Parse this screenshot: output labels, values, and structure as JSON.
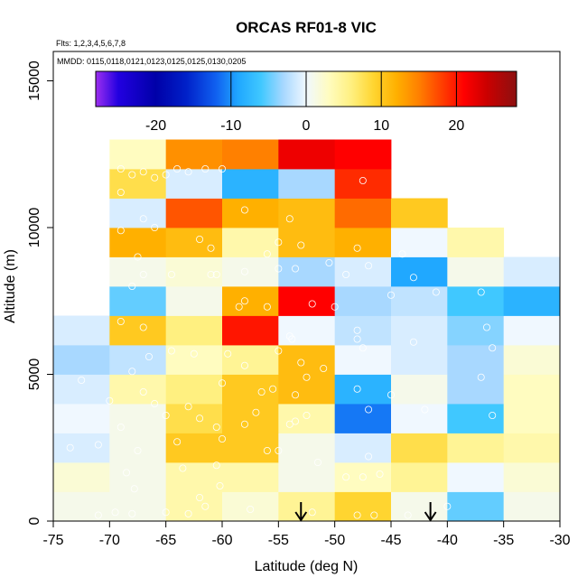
{
  "chart_data": {
    "type": "heatmap",
    "title": "ORCAS RF01-8 VIC",
    "subtitle_flights": "Flts: 1,2,3,4,5,6,7,8",
    "subtitle_dates": "MMDD: 0115,0118,0121,0123,0125,0125,0130,0205",
    "xlabel": "Latitude (deg N)",
    "ylabel": "Altitude (m)",
    "xlim": [
      -75,
      -30
    ],
    "ylim": [
      0,
      16000
    ],
    "x_ticks": [
      -75,
      -70,
      -65,
      -60,
      -55,
      -50,
      -45,
      -40,
      -35,
      -30
    ],
    "x_tick_labels": [
      "-75",
      "-70",
      "-65",
      "-60",
      "-55",
      "-50",
      "-45",
      "-40",
      "-35",
      "-30"
    ],
    "y_ticks": [
      0,
      5000,
      10000,
      15000
    ],
    "y_tick_labels": [
      "0",
      "5000",
      "10000",
      "15000"
    ],
    "colorbar": {
      "range": [
        -28,
        28
      ],
      "ticks": [
        -20,
        -10,
        0,
        10,
        20
      ],
      "tick_labels": [
        "-20",
        "-10",
        "0",
        "10",
        "20"
      ],
      "stops": [
        {
          "v": -28,
          "c": "#9d2ff0"
        },
        {
          "v": -25,
          "c": "#2200e0"
        },
        {
          "v": -20,
          "c": "#0000a8"
        },
        {
          "v": -16,
          "c": "#0020c8"
        },
        {
          "v": -12,
          "c": "#1060f0"
        },
        {
          "v": -9,
          "c": "#20a8ff"
        },
        {
          "v": -6,
          "c": "#40c8ff"
        },
        {
          "v": -3,
          "c": "#a8d8ff"
        },
        {
          "v": 0,
          "c": "#f0f8ff"
        },
        {
          "v": 3,
          "c": "#fffcc0"
        },
        {
          "v": 6,
          "c": "#fff080"
        },
        {
          "v": 9,
          "c": "#ffd530"
        },
        {
          "v": 12,
          "c": "#ffb000"
        },
        {
          "v": 15,
          "c": "#ff8000"
        },
        {
          "v": 18,
          "c": "#ff4000"
        },
        {
          "v": 21,
          "c": "#ff0000"
        },
        {
          "v": 24,
          "c": "#cc0000"
        },
        {
          "v": 28,
          "c": "#8b1010"
        }
      ]
    },
    "lat_bins": [
      -75,
      -70,
      -65,
      -60,
      -55,
      -50,
      -45,
      -40,
      -35
    ],
    "alt_bin_size": 1000,
    "grid": [
      [
        1,
        1,
        4,
        2,
        5,
        9,
        1,
        -5,
        1
      ],
      [
        2,
        1,
        4,
        4,
        1,
        3,
        5,
        0,
        2
      ],
      [
        -1,
        1,
        10,
        10,
        1,
        -1,
        8,
        5,
        4
      ],
      [
        0,
        1,
        8,
        10,
        4,
        -11,
        0,
        -6,
        3
      ],
      [
        -1,
        4,
        6,
        10,
        11,
        -8,
        1,
        -3,
        3
      ],
      [
        -3,
        -2,
        3,
        5,
        11,
        0,
        -1,
        -3,
        2
      ],
      [
        -1,
        10,
        6,
        20,
        0,
        -2,
        -1,
        -4,
        0
      ],
      [
        null,
        -5,
        1,
        12,
        21,
        -3,
        -2,
        -6,
        -8
      ],
      [
        null,
        1,
        2,
        1,
        -3,
        -1,
        -9,
        1,
        -1
      ],
      [
        null,
        12,
        11,
        4,
        11,
        12,
        0,
        4,
        null
      ],
      [
        null,
        -1,
        17,
        12,
        11,
        16,
        10,
        null,
        null
      ],
      [
        null,
        8,
        -1,
        -8,
        -3,
        19,
        null,
        null,
        null
      ],
      [
        null,
        3,
        14,
        15,
        22,
        21,
        null,
        null,
        null
      ]
    ],
    "obs_points": [
      [
        -71,
        200
      ],
      [
        -69.5,
        300
      ],
      [
        -68,
        250
      ],
      [
        -67.8,
        1100
      ],
      [
        -65,
        300
      ],
      [
        -63,
        250
      ],
      [
        -62,
        800
      ],
      [
        -61.5,
        500
      ],
      [
        -60.2,
        1200
      ],
      [
        -57.5,
        400
      ],
      [
        -52,
        300
      ],
      [
        -48,
        200
      ],
      [
        -46.5,
        200
      ],
      [
        -47.5,
        1500
      ],
      [
        -46,
        1600
      ],
      [
        -43.5,
        200
      ],
      [
        -40,
        500
      ],
      [
        -68.5,
        1650
      ],
      [
        -63.5,
        1800
      ],
      [
        -60.5,
        1900
      ],
      [
        -56,
        2400
      ],
      [
        -55,
        2400
      ],
      [
        -47,
        2200
      ],
      [
        -67.5,
        2400
      ],
      [
        -71,
        2600
      ],
      [
        -64,
        2700
      ],
      [
        -60,
        2800
      ],
      [
        -58,
        3300
      ],
      [
        -54,
        3300
      ],
      [
        -53.5,
        3400
      ],
      [
        -62,
        3500
      ],
      [
        -65,
        3600
      ],
      [
        -60.5,
        3200
      ],
      [
        -47,
        3800
      ],
      [
        -42,
        3800
      ],
      [
        -36,
        3600
      ],
      [
        -70,
        4100
      ],
      [
        -67,
        4400
      ],
      [
        -60,
        4700
      ],
      [
        -56.5,
        4400
      ],
      [
        -55.5,
        4500
      ],
      [
        -53.5,
        4300
      ],
      [
        -63,
        3900
      ],
      [
        -48,
        4500
      ],
      [
        -45,
        4300
      ],
      [
        -52.5,
        4900
      ],
      [
        -51,
        5200
      ],
      [
        -68,
        5100
      ],
      [
        -66.5,
        5600
      ],
      [
        -64.5,
        5800
      ],
      [
        -62.5,
        5700
      ],
      [
        -59.5,
        5700
      ],
      [
        -58,
        5300
      ],
      [
        -55,
        5800
      ],
      [
        -53,
        5400
      ],
      [
        -48,
        6200
      ],
      [
        -47.5,
        5900
      ],
      [
        -37,
        4900
      ],
      [
        -36,
        5900
      ],
      [
        -67,
        6600
      ],
      [
        -69,
        6800
      ],
      [
        -54,
        6300
      ],
      [
        -53.8,
        6200
      ],
      [
        -48,
        6500
      ],
      [
        -43,
        6100
      ],
      [
        -36.5,
        6600
      ],
      [
        -58.5,
        7300
      ],
      [
        -58,
        7500
      ],
      [
        -56,
        7300
      ],
      [
        -52,
        7400
      ],
      [
        -50,
        7300
      ],
      [
        -45,
        7700
      ],
      [
        -41,
        7800
      ],
      [
        -37,
        7800
      ],
      [
        -71,
        7600
      ],
      [
        -68,
        8000
      ],
      [
        -67,
        8400
      ],
      [
        -64.5,
        8400
      ],
      [
        -61,
        8400
      ],
      [
        -60.5,
        8400
      ],
      [
        -58,
        8500
      ],
      [
        -55,
        8600
      ],
      [
        -53.5,
        8600
      ],
      [
        -50.5,
        8800
      ],
      [
        -49,
        8400
      ],
      [
        -47,
        8700
      ],
      [
        -43,
        8300
      ],
      [
        -67.5,
        9000
      ],
      [
        -62,
        9600
      ],
      [
        -61,
        9300
      ],
      [
        -56,
        9100
      ],
      [
        -55,
        9500
      ],
      [
        -53,
        9400
      ],
      [
        -48,
        9300
      ],
      [
        -44,
        9100
      ],
      [
        -69,
        9900
      ],
      [
        -67,
        10300
      ],
      [
        -66,
        10000
      ],
      [
        -58,
        10600
      ],
      [
        -54,
        10300
      ],
      [
        -47.5,
        11600
      ],
      [
        -69,
        11200
      ],
      [
        -68,
        11800
      ],
      [
        -67,
        11900
      ],
      [
        -63,
        11900
      ],
      [
        -61.5,
        12000
      ],
      [
        -65,
        11800
      ],
      [
        -64,
        12000
      ],
      [
        -66,
        11700
      ],
      [
        -60,
        12000
      ],
      [
        -69,
        12000
      ],
      [
        -71,
        11000
      ],
      [
        -72.5,
        4800
      ],
      [
        -73.5,
        2500
      ],
      [
        -66,
        4000
      ],
      [
        -51.5,
        2000
      ],
      [
        -49,
        1500
      ],
      [
        -52.5,
        3600
      ],
      [
        -69,
        3200
      ],
      [
        -57,
        3700
      ]
    ],
    "arrows_at_lat": [
      -53,
      -41.5
    ]
  }
}
